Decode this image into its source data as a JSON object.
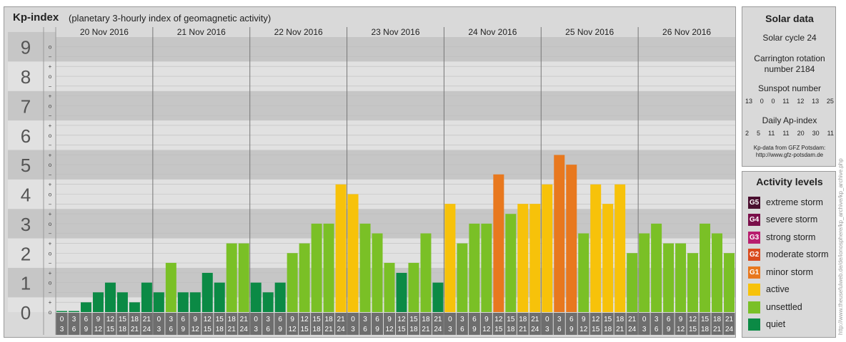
{
  "header": {
    "title": "Kp-index",
    "subtitle": "(planetary 3-hourly index of geomagnetic activity)"
  },
  "chart_data": {
    "type": "bar",
    "days": [
      "20 Nov 2016",
      "21 Nov 2016",
      "22 Nov 2016",
      "23 Nov 2016",
      "24 Nov 2016",
      "25 Nov 2016",
      "26 Nov 2016"
    ],
    "kp_labels": [
      "0",
      "1",
      "2",
      "3",
      "4",
      "5",
      "6",
      "7",
      "8",
      "9"
    ],
    "sub_labels": [
      "o",
      "+",
      "−"
    ],
    "hour_starts": [
      "0",
      "3",
      "6",
      "9",
      "12",
      "15",
      "18",
      "21"
    ],
    "hour_ends": [
      "3",
      "6",
      "9",
      "12",
      "15",
      "18",
      "21",
      "24"
    ],
    "ylim": [
      0,
      9.33
    ],
    "values": [
      [
        0.0,
        0.0,
        0.33,
        0.67,
        1.0,
        0.67,
        0.33,
        1.0
      ],
      [
        0.67,
        1.67,
        0.67,
        0.67,
        1.33,
        1.0,
        2.33,
        2.33
      ],
      [
        1.0,
        0.67,
        1.0,
        2.0,
        2.33,
        3.0,
        3.0,
        4.33
      ],
      [
        4.0,
        3.0,
        2.67,
        1.67,
        1.33,
        1.67,
        2.67,
        1.0
      ],
      [
        3.67,
        2.33,
        3.0,
        3.0,
        4.67,
        3.33,
        3.67,
        3.67
      ],
      [
        4.33,
        5.33,
        5.0,
        2.67,
        4.33,
        3.67,
        4.33,
        2.0
      ],
      [
        2.67,
        3.0,
        2.33,
        2.33,
        2.0,
        3.0,
        2.67,
        2.0
      ]
    ]
  },
  "solar": {
    "title": "Solar data",
    "cycle": "Solar cycle 24",
    "carrington_line1": "Carrington rotation",
    "carrington_line2": "number 2184",
    "sunspot_title": "Sunspot number",
    "sunspot_values": [
      "13",
      "0",
      "0",
      "11",
      "12",
      "13",
      "25"
    ],
    "ap_title": "Daily Ap-index",
    "ap_values": [
      "2",
      "5",
      "11",
      "11",
      "20",
      "30",
      "11"
    ],
    "source_line1": "Kp-data from GFZ Potsdam:",
    "source_line2": "http://www.gfz-potsdam.de"
  },
  "activity": {
    "title": "Activity levels",
    "levels": [
      {
        "badge": "G5",
        "label": "extreme storm",
        "color": "#4a0f2f"
      },
      {
        "badge": "G4",
        "label": "severe storm",
        "color": "#7a0f4a"
      },
      {
        "badge": "G3",
        "label": "strong storm",
        "color": "#b81d6e"
      },
      {
        "badge": "G2",
        "label": "moderate storm",
        "color": "#d94a1e"
      },
      {
        "badge": "G1",
        "label": "minor storm",
        "color": "#e8781e"
      },
      {
        "badge": "",
        "label": "active",
        "color": "#f7c20a"
      },
      {
        "badge": "",
        "label": "unsettled",
        "color": "#7ac026"
      },
      {
        "badge": "",
        "label": "quiet",
        "color": "#0b8a45"
      }
    ]
  },
  "colors": {
    "band_dark": "#c6c6c6",
    "band_light": "#e1e1e1",
    "axis_bg": "#6e6e6e",
    "quiet": "#0b8a45",
    "unsettled": "#7ac026",
    "active": "#f7c20a",
    "minor_storm": "#e8781e"
  },
  "watermark": "http://www.theusefulweb.de/de/ionosphere/kp_archive/kp_archive.php"
}
